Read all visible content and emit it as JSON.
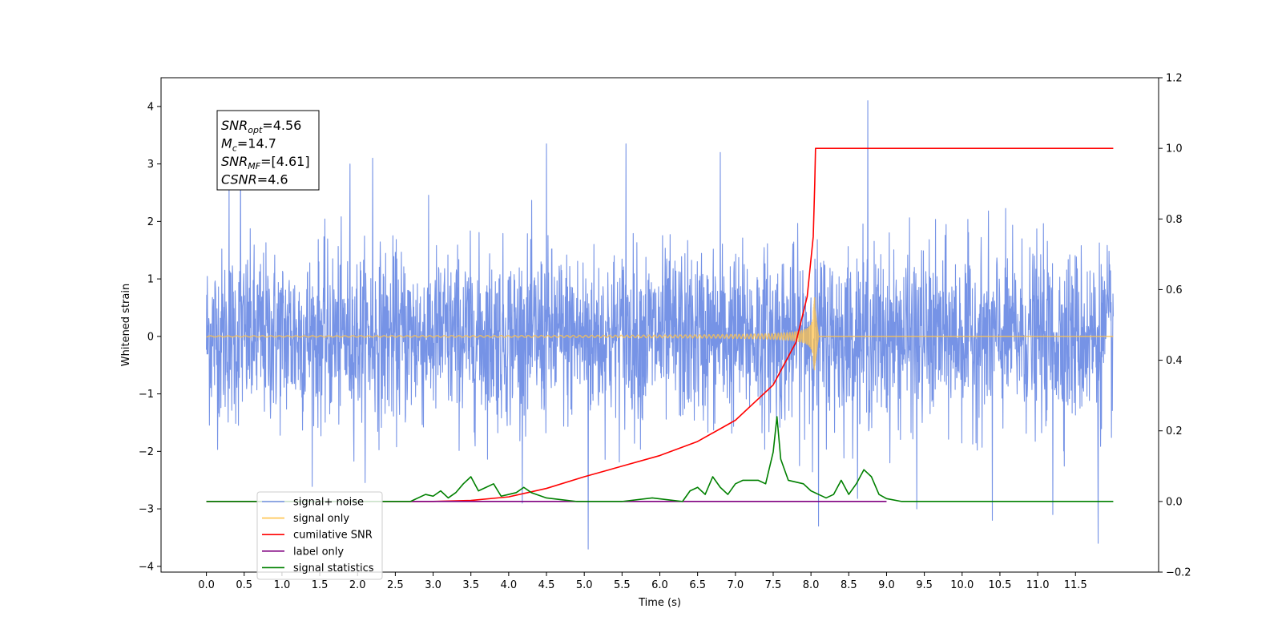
{
  "chart_data": {
    "type": "line",
    "title": "",
    "xlabel": "Time (s)",
    "ylabel": "Whitened strain",
    "ylabel_right": "",
    "xlim": [
      -0.6,
      12.6
    ],
    "ylim": [
      -4.1,
      4.5
    ],
    "ylim_right": [
      -0.2,
      1.2
    ],
    "x_ticks": [
      0.0,
      0.5,
      1.0,
      1.5,
      2.0,
      2.5,
      3.0,
      3.5,
      4.0,
      4.5,
      5.0,
      5.5,
      6.0,
      6.5,
      7.0,
      7.5,
      8.0,
      8.5,
      9.0,
      9.5,
      10.0,
      10.5,
      11.0,
      11.5
    ],
    "x_tick_labels": [
      "0.0",
      "0.5",
      "1.0",
      "1.5",
      "2.0",
      "2.5",
      "3.0",
      "3.5",
      "4.0",
      "4.5",
      "5.0",
      "5.5",
      "6.0",
      "6.5",
      "7.0",
      "7.5",
      "8.0",
      "8.5",
      "9.0",
      "9.5",
      "10.0",
      "10.5",
      "11.0",
      "11.5"
    ],
    "y_ticks": [
      -4,
      -3,
      -2,
      -1,
      0,
      1,
      2,
      3,
      4
    ],
    "y_tick_labels": [
      "−4",
      "−3",
      "−2",
      "−1",
      "0",
      "1",
      "2",
      "3",
      "4"
    ],
    "y_right_ticks": [
      -0.2,
      0.0,
      0.2,
      0.4,
      0.6,
      0.8,
      1.0,
      1.2
    ],
    "y_right_tick_labels": [
      "−0.2",
      "0.0",
      "0.2",
      "0.4",
      "0.6",
      "0.8",
      "1.0",
      "1.2"
    ],
    "legend_placement": "lower-left",
    "annotation": {
      "lines": [
        {
          "main": "SNR",
          "sub": "opt",
          "rest": "=4.56"
        },
        {
          "main": "M",
          "sub": "c",
          "rest": "=14.7"
        },
        {
          "main": "SNR",
          "sub": "MF",
          "rest": "=[4.61]"
        },
        {
          "main": "CSNR",
          "sub": "",
          "rest": "=4.6"
        }
      ]
    },
    "series": [
      {
        "name": "signal+ noise",
        "axis": "left",
        "color": "#7693e6",
        "style": "noise",
        "x_range": [
          0.0,
          12.0
        ],
        "typical_amplitude": 1.5,
        "spikes": [
          [
            0.3,
            2.6
          ],
          [
            0.45,
            3.2
          ],
          [
            1.9,
            3.0
          ],
          [
            2.2,
            3.1
          ],
          [
            4.5,
            3.35
          ],
          [
            5.05,
            -3.7
          ],
          [
            5.55,
            3.35
          ],
          [
            6.8,
            3.2
          ],
          [
            8.1,
            -3.3
          ],
          [
            8.75,
            4.1
          ],
          [
            9.4,
            -3.0
          ],
          [
            10.4,
            -3.2
          ],
          [
            11.8,
            -3.6
          ],
          [
            11.2,
            -3.1
          ]
        ]
      },
      {
        "name": "signal only",
        "axis": "left",
        "color": "#ffc34d",
        "style": "chirp",
        "x_range": [
          0.0,
          12.0
        ],
        "merger_time": 8.05,
        "peak_amplitude": 0.7
      },
      {
        "name": "cumilative SNR",
        "axis": "right",
        "color": "#ff0000",
        "x": [
          0.0,
          3.0,
          3.5,
          4.0,
          4.5,
          5.0,
          5.5,
          6.0,
          6.5,
          7.0,
          7.5,
          7.8,
          7.95,
          8.03,
          8.05,
          8.06,
          12.0
        ],
        "y": [
          0.0,
          0.0,
          0.003,
          0.013,
          0.037,
          0.07,
          0.1,
          0.13,
          0.17,
          0.23,
          0.33,
          0.45,
          0.58,
          0.75,
          0.9,
          1.0,
          1.0
        ]
      },
      {
        "name": "label only",
        "axis": "right",
        "color": "#800080",
        "x": [
          0.0,
          9.0
        ],
        "y": [
          0.0,
          0.0
        ]
      },
      {
        "name": "signal statistics",
        "axis": "right",
        "color": "#008000",
        "x": [
          0.0,
          2.7,
          2.9,
          3.0,
          3.1,
          3.2,
          3.3,
          3.4,
          3.5,
          3.6,
          3.7,
          3.8,
          3.9,
          4.0,
          4.1,
          4.2,
          4.3,
          4.5,
          4.7,
          4.9,
          5.1,
          5.5,
          5.9,
          6.1,
          6.3,
          6.4,
          6.5,
          6.6,
          6.7,
          6.8,
          6.9,
          7.0,
          7.1,
          7.3,
          7.4,
          7.5,
          7.55,
          7.6,
          7.7,
          7.9,
          8.0,
          8.1,
          8.2,
          8.3,
          8.4,
          8.5,
          8.6,
          8.7,
          8.8,
          8.9,
          9.0,
          9.2,
          12.0
        ],
        "y": [
          0.0,
          0.0,
          0.02,
          0.015,
          0.03,
          0.01,
          0.025,
          0.05,
          0.07,
          0.03,
          0.04,
          0.05,
          0.015,
          0.02,
          0.025,
          0.04,
          0.025,
          0.01,
          0.005,
          0.0,
          0.0,
          0.0,
          0.01,
          0.005,
          0.0,
          0.03,
          0.04,
          0.02,
          0.07,
          0.04,
          0.02,
          0.05,
          0.06,
          0.06,
          0.05,
          0.14,
          0.24,
          0.12,
          0.06,
          0.05,
          0.03,
          0.02,
          0.01,
          0.02,
          0.06,
          0.02,
          0.05,
          0.09,
          0.07,
          0.02,
          0.008,
          0.0,
          0.0
        ]
      }
    ]
  }
}
